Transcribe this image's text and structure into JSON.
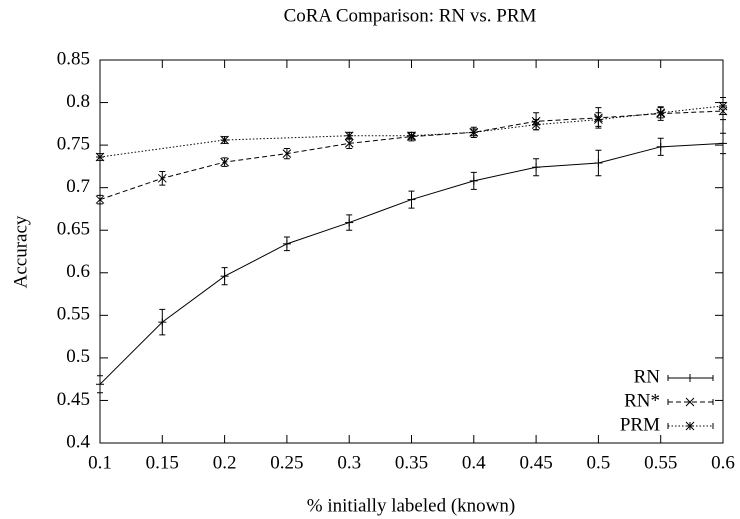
{
  "chart_data": {
    "type": "line",
    "title": "CoRA Comparison: RN vs. PRM",
    "x_label": "% initially labeled (known)",
    "y_label": "Accuracy",
    "xlim": [
      0.1,
      0.6
    ],
    "xticks": [
      0.1,
      0.15,
      0.2,
      0.25,
      0.3,
      0.35,
      0.4,
      0.45,
      0.5,
      0.55,
      0.6
    ],
    "ylim": [
      0.4,
      0.85
    ],
    "yticks": [
      0.4,
      0.45,
      0.5,
      0.55,
      0.6,
      0.65,
      0.7,
      0.75,
      0.8,
      0.85
    ],
    "grid": false,
    "legend": "bottom-right",
    "series": [
      {
        "name": "RN",
        "color": "#000000",
        "style": "solid",
        "marker": "plus",
        "x": [
          0.1,
          0.15,
          0.2,
          0.25,
          0.3,
          0.35,
          0.4,
          0.45,
          0.5,
          0.55,
          0.6
        ],
        "values": [
          0.469,
          0.542,
          0.596,
          0.634,
          0.659,
          0.686,
          0.708,
          0.724,
          0.729,
          0.748,
          0.752
        ],
        "errors": [
          0.01,
          0.015,
          0.01,
          0.008,
          0.009,
          0.01,
          0.01,
          0.01,
          0.015,
          0.01,
          0.012
        ]
      },
      {
        "name": "RN*",
        "color": "#000000",
        "style": "dashed",
        "marker": "cross",
        "x": [
          0.1,
          0.15,
          0.2,
          0.25,
          0.3,
          0.35,
          0.4,
          0.45,
          0.5,
          0.55,
          0.6
        ],
        "values": [
          0.686,
          0.711,
          0.73,
          0.74,
          0.752,
          0.76,
          0.765,
          0.778,
          0.782,
          0.787,
          0.79
        ],
        "errors": [
          0.005,
          0.008,
          0.005,
          0.006,
          0.006,
          0.005,
          0.006,
          0.01,
          0.012,
          0.008,
          0.01
        ]
      },
      {
        "name": "PRM",
        "color": "#000000",
        "style": "dotted",
        "marker": "star",
        "x": [
          0.1,
          0.2,
          0.3,
          0.35,
          0.4,
          0.45,
          0.5,
          0.55,
          0.6
        ],
        "values": [
          0.736,
          0.756,
          0.761,
          0.761,
          0.765,
          0.774,
          0.78,
          0.788,
          0.796
        ],
        "errors": [
          0.004,
          0.004,
          0.004,
          0.004,
          0.004,
          0.006,
          0.008,
          0.006,
          0.01
        ]
      }
    ]
  }
}
